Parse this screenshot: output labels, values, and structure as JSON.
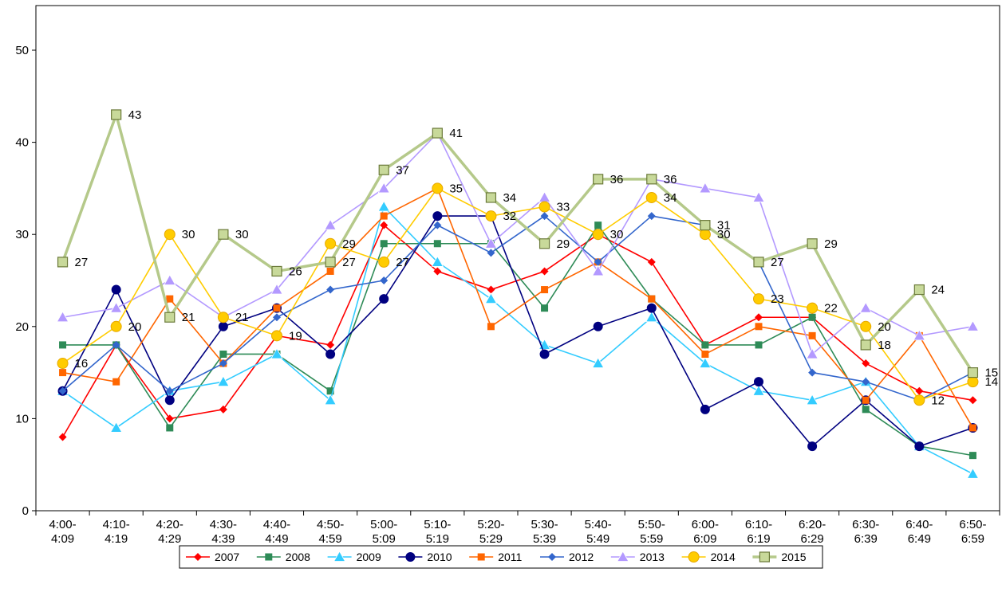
{
  "chart_data": {
    "type": "line",
    "title": "",
    "xlabel": "",
    "ylabel": "",
    "ylim": [
      0,
      50
    ],
    "yticks": [
      0,
      10,
      20,
      30,
      40,
      50
    ],
    "grid": false,
    "legend_position": "bottom",
    "categories": [
      [
        "4:00-",
        "4:09"
      ],
      [
        "4:10-",
        "4:19"
      ],
      [
        "4:20-",
        "4:29"
      ],
      [
        "4:30-",
        "4:39"
      ],
      [
        "4:40-",
        "4:49"
      ],
      [
        "4:50-",
        "4:59"
      ],
      [
        "5:00-",
        "5:09"
      ],
      [
        "5:10-",
        "5:19"
      ],
      [
        "5:20-",
        "5:29"
      ],
      [
        "5:30-",
        "5:39"
      ],
      [
        "5:40-",
        "5:49"
      ],
      [
        "5:50-",
        "5:59"
      ],
      [
        "6:00-",
        "6:09"
      ],
      [
        "6:10-",
        "6:19"
      ],
      [
        "6:20-",
        "6:29"
      ],
      [
        "6:30-",
        "6:39"
      ],
      [
        "6:40-",
        "6:49"
      ],
      [
        "6:50-",
        "6:59"
      ]
    ],
    "series": [
      {
        "name": "2007",
        "color": "#ff0000",
        "marker": "diamond",
        "labels": false,
        "values": [
          8,
          18,
          10,
          11,
          19,
          18,
          31,
          26,
          24,
          26,
          30,
          27,
          18,
          21,
          21,
          16,
          13,
          12
        ]
      },
      {
        "name": "2008",
        "color": "#2e8b57",
        "marker": "square",
        "labels": false,
        "values": [
          18,
          18,
          9,
          17,
          17,
          13,
          29,
          29,
          29,
          22,
          31,
          23,
          18,
          18,
          21,
          11,
          7,
          6
        ]
      },
      {
        "name": "2009",
        "color": "#33ccff",
        "marker": "triangle",
        "labels": false,
        "values": [
          13,
          9,
          13,
          14,
          17,
          12,
          33,
          27,
          23,
          18,
          16,
          21,
          16,
          13,
          12,
          14,
          7,
          4
        ]
      },
      {
        "name": "2010",
        "color": "#000080",
        "marker": "circle",
        "labels": false,
        "values": [
          13,
          24,
          12,
          20,
          22,
          17,
          23,
          32,
          32,
          17,
          20,
          22,
          11,
          14,
          7,
          12,
          7,
          9
        ]
      },
      {
        "name": "2011",
        "color": "#ff6600",
        "marker": "square",
        "labels": false,
        "values": [
          15,
          14,
          23,
          16,
          22,
          26,
          32,
          35,
          20,
          24,
          27,
          23,
          17,
          20,
          19,
          12,
          19,
          9
        ]
      },
      {
        "name": "2012",
        "color": "#3366cc",
        "marker": "diamond",
        "labels": false,
        "values": [
          13,
          18,
          13,
          16,
          21,
          24,
          25,
          31,
          28,
          32,
          27,
          32,
          31,
          27,
          15,
          14,
          12,
          15
        ]
      },
      {
        "name": "2013",
        "color": "#b399ff",
        "marker": "triangle",
        "labels": false,
        "values": [
          21,
          22,
          25,
          21,
          24,
          31,
          35,
          41,
          29,
          34,
          26,
          36,
          35,
          34,
          17,
          22,
          19,
          20
        ]
      },
      {
        "name": "2014",
        "color": "#ffcc00",
        "marker": "circle",
        "labels": true,
        "values": [
          16,
          20,
          30,
          21,
          19,
          29,
          27,
          35,
          32,
          33,
          30,
          34,
          30,
          23,
          22,
          20,
          12,
          14
        ]
      },
      {
        "name": "2015",
        "color": "#b5c98a",
        "marker": "square-outline",
        "labels": true,
        "values": [
          27,
          43,
          21,
          30,
          26,
          27,
          37,
          41,
          34,
          29,
          36,
          36,
          31,
          27,
          29,
          18,
          24,
          15
        ]
      }
    ]
  }
}
